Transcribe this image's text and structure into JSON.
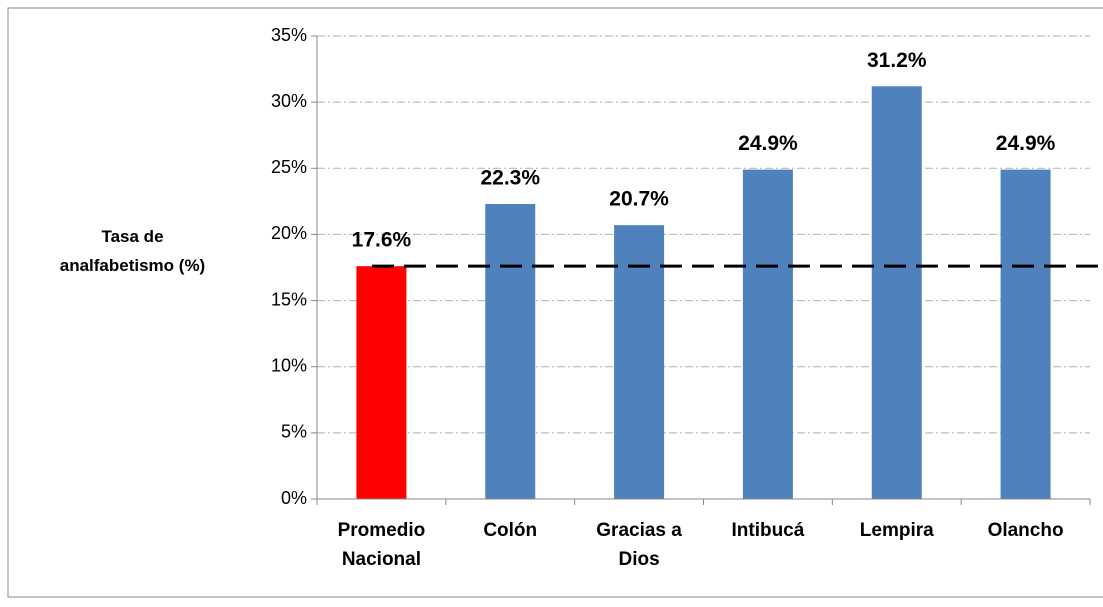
{
  "chart_data": {
    "type": "bar",
    "y_label": "Tasa de analfabetismo (%)",
    "categories": [
      "Promedio Nacional",
      "Colón",
      "Gracias a Dios",
      "Intibucá",
      "Lempira",
      "Olancho"
    ],
    "values": [
      17.6,
      22.3,
      20.7,
      24.9,
      31.2,
      24.9
    ],
    "value_labels": [
      "17.6%",
      "22.3%",
      "20.7%",
      "24.9%",
      "31.2%",
      "24.9%"
    ],
    "colors": [
      "#ff0000",
      "#4f81bd",
      "#4f81bd",
      "#4f81bd",
      "#4f81bd",
      "#4f81bd"
    ],
    "reference_line": 17.6,
    "ylim": [
      0,
      35
    ],
    "yticks": [
      {
        "value": 0,
        "label": "0%"
      },
      {
        "value": 5,
        "label": "5%"
      },
      {
        "value": 10,
        "label": "10%"
      },
      {
        "value": 15,
        "label": "15%"
      },
      {
        "value": 20,
        "label": "20%"
      },
      {
        "value": 25,
        "label": "25%"
      },
      {
        "value": 30,
        "label": "30%"
      },
      {
        "value": 35,
        "label": "35%"
      }
    ],
    "grid": true
  }
}
